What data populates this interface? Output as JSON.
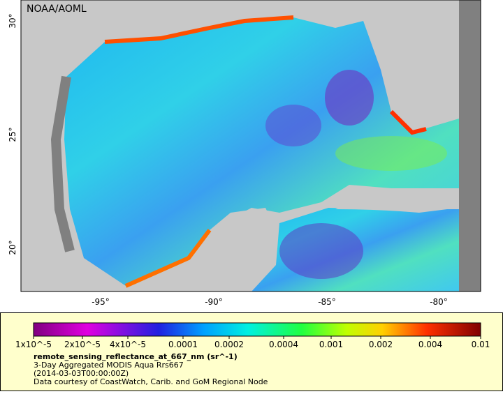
{
  "map": {
    "attribution": "NOAA/AOML",
    "lat_labels": [
      "30°",
      "25°",
      "20°"
    ],
    "lon_labels": [
      "-95°",
      "-90°",
      "-85°",
      "-80°"
    ]
  },
  "colorbar": {
    "ticks": [
      "1x10^-5",
      "2x10^-5",
      "4x10^-5",
      "0.0001",
      "0.0002",
      "0.0004",
      "0.001",
      "0.002",
      "0.004",
      "0.01"
    ]
  },
  "legend": {
    "variable": "remote_sensing_reflectance_at_667_nm (sr^-1)",
    "lines": [
      "3-Day Aggregated MODIS Aqua Rrs667",
      "(2014-03-03T00:00:00Z)",
      "Data courtesy of CoastWatch, Carib. and GoM Regional Node"
    ]
  }
}
